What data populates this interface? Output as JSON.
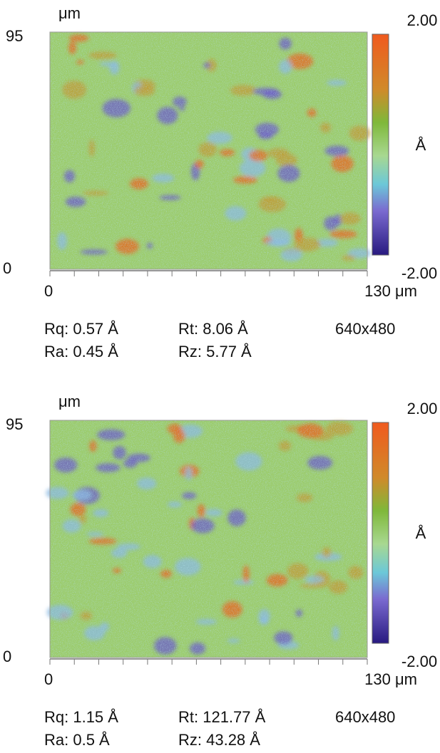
{
  "panels": [
    {
      "y_unit": "μm",
      "y_max": "95",
      "y_min": "0",
      "x_min": "0",
      "x_max": "130 μm",
      "scale_max": "2.00",
      "scale_unit": "Å",
      "scale_min": "-2.00",
      "stats": {
        "rq": "Rq: 0.57 Å",
        "rt": "Rt: 8.06 Å",
        "size": "640x480",
        "ra": "Ra: 0.45 Å",
        "rz": "Rz: 5.77 Å"
      }
    },
    {
      "y_unit": "μm",
      "y_max": "95",
      "y_min": "0",
      "x_min": "0",
      "x_max": "130 μm",
      "scale_max": "2.00",
      "scale_unit": "Å",
      "scale_min": "-2.00",
      "stats": {
        "rq": "Rq: 1.15 Å",
        "rt": "Rt: 121.77 Å",
        "size": "640x480",
        "ra": "Ra: 0.5 Å",
        "rz": "Rz: 43.28 Å"
      }
    }
  ]
}
